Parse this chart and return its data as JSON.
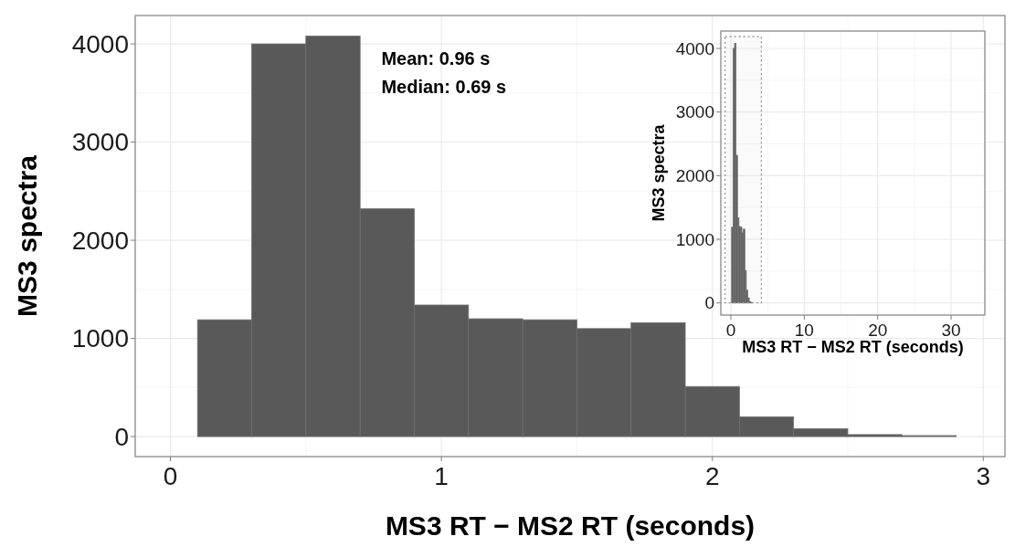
{
  "chart_data": [
    {
      "type": "histogram",
      "xlabel": "MS3 RT − MS2 RT (seconds)",
      "ylabel": "MS3 spectra",
      "bins": [
        0.1,
        0.3,
        0.5,
        0.7,
        0.9,
        1.1,
        1.3,
        1.5,
        1.7,
        1.9,
        2.1,
        2.3,
        2.5,
        2.7,
        2.9
      ],
      "values": [
        1190,
        4000,
        4080,
        2320,
        1340,
        1200,
        1190,
        1100,
        1160,
        510,
        200,
        80,
        20,
        10
      ],
      "color": "#595959",
      "xlim": [
        -0.13,
        3.08
      ],
      "ylim": [
        -204,
        4289
      ],
      "xticks": [
        0,
        1,
        2,
        3
      ],
      "yticks": [
        0,
        1000,
        2000,
        3000,
        4000
      ],
      "grid": true,
      "annotations": [
        "Mean: 0.96 s",
        "Median: 0.69 s"
      ]
    },
    {
      "type": "histogram",
      "xlabel": "MS3 RT − MS2 RT (seconds)",
      "ylabel": "MS3 spectra",
      "bins": [
        0.1,
        0.3,
        0.5,
        0.7,
        0.9,
        1.1,
        1.3,
        1.5,
        1.7,
        1.9,
        2.1,
        2.3,
        2.5,
        2.7,
        2.9
      ],
      "values": [
        1190,
        4000,
        4080,
        2320,
        1340,
        1200,
        1190,
        1100,
        1160,
        510,
        200,
        80,
        20,
        10
      ],
      "color": "#595959",
      "xlim": [
        -1.37,
        34.6
      ],
      "ylim": [
        -191,
        4273
      ],
      "xticks": [
        0,
        10,
        20,
        30
      ],
      "yticks": [
        0,
        1000,
        2000,
        3000,
        4000
      ],
      "grid": true,
      "bands": [
        {
          "axis": "x",
          "from": -0.8,
          "to": 4.15,
          "color": "#999999"
        }
      ]
    }
  ]
}
